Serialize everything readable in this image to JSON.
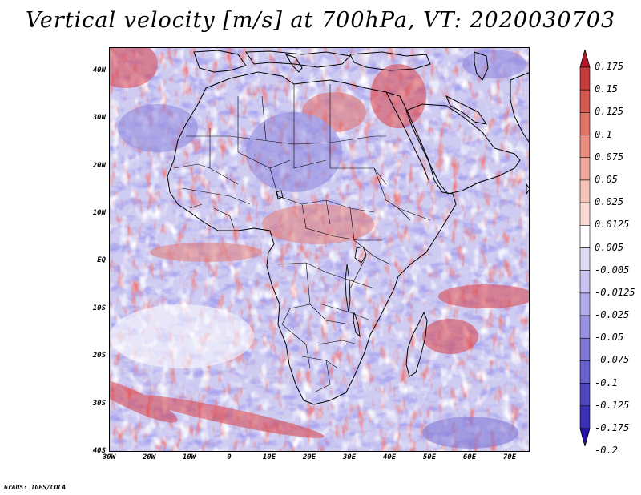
{
  "title": "Vertical velocity [m/s] at 700hPa, VT: 2020030703",
  "credit": "GrADS: IGES/COLA",
  "map": {
    "lon_range": [
      -30,
      75
    ],
    "lat_range": [
      -40,
      45
    ],
    "lat_ticks": [
      {
        "value": 40,
        "label": "40N"
      },
      {
        "value": 30,
        "label": "30N"
      },
      {
        "value": 20,
        "label": "20N"
      },
      {
        "value": 10,
        "label": "10N"
      },
      {
        "value": 0,
        "label": "EQ"
      },
      {
        "value": -10,
        "label": "10S"
      },
      {
        "value": -20,
        "label": "20S"
      },
      {
        "value": -30,
        "label": "30S"
      },
      {
        "value": -40,
        "label": "40S"
      }
    ],
    "lon_ticks": [
      {
        "value": -30,
        "label": "30W"
      },
      {
        "value": -20,
        "label": "20W"
      },
      {
        "value": -10,
        "label": "10W"
      },
      {
        "value": 0,
        "label": "0"
      },
      {
        "value": 10,
        "label": "10E"
      },
      {
        "value": 20,
        "label": "20E"
      },
      {
        "value": 30,
        "label": "30E"
      },
      {
        "value": 40,
        "label": "40E"
      },
      {
        "value": 50,
        "label": "50E"
      },
      {
        "value": 60,
        "label": "60E"
      },
      {
        "value": 70,
        "label": "70E"
      }
    ]
  },
  "colorbar": {
    "levels": [
      "0.175",
      "0.15",
      "0.125",
      "0.1",
      "0.075",
      "0.05",
      "0.025",
      "0.0125",
      "0.005",
      "-0.005",
      "-0.0125",
      "-0.025",
      "-0.05",
      "-0.075",
      "-0.1",
      "-0.125",
      "-0.175",
      "-0.2"
    ],
    "colors": [
      "#b2182b",
      "#c73a3c",
      "#d4574f",
      "#de7366",
      "#e88d80",
      "#f0a89c",
      "#f5c2b8",
      "#fadbd4",
      "#ffffff",
      "#dedcf5",
      "#c8c4ef",
      "#b0aae8",
      "#9891e0",
      "#7f77d6",
      "#6860cc",
      "#4f45c0",
      "#3a2fb5",
      "#2413a6"
    ]
  }
}
